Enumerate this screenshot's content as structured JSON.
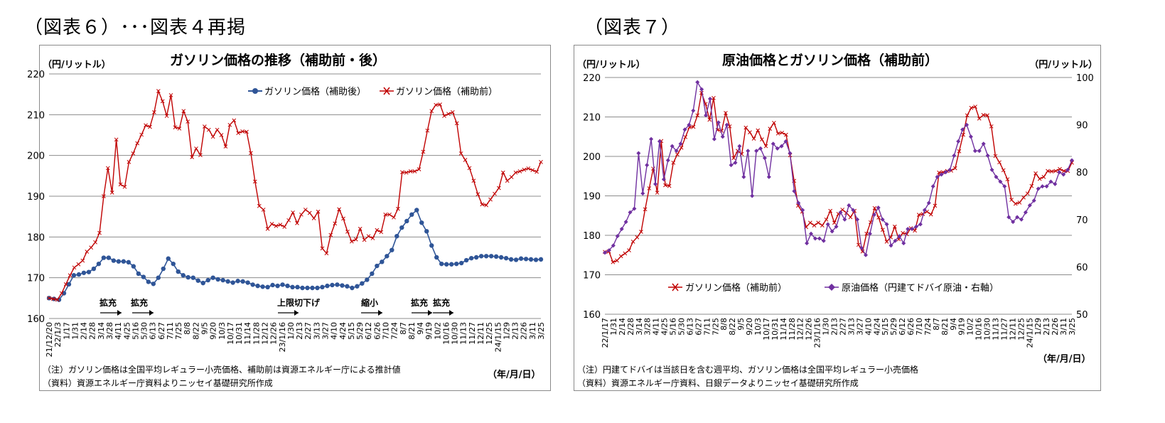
{
  "captions": {
    "left": "（図表６）･･･図表４再掲",
    "right": "（図表７）"
  },
  "chart_data": [
    {
      "type": "line",
      "title": "ガソリン価格の推移（補助前・後）",
      "y_unit": "（円/リットル）",
      "ylim": [
        160,
        220
      ],
      "yticks": [
        160,
        170,
        180,
        190,
        200,
        210,
        220
      ],
      "grid": true,
      "legend_position": "top-right",
      "x_unit": "（年/月/日）",
      "x_tick_labels": [
        "21/12/20",
        "22/1/3",
        "1/17",
        "1/31",
        "2/14",
        "2/28",
        "3/14",
        "3/28",
        "4/11",
        "4/25",
        "5/16",
        "5/30",
        "6/13",
        "6/27",
        "7/11",
        "7/25",
        "8/8",
        "8/22",
        "9/5",
        "9/20",
        "10/3",
        "10/17",
        "10/31",
        "11/14",
        "11/28",
        "12/12",
        "12/26",
        "23/1/16",
        "1/30",
        "2/13",
        "2/27",
        "3/13",
        "3/27",
        "4/10",
        "4/24",
        "5/15",
        "5/29",
        "6/12",
        "6/26",
        "7/10",
        "7/24",
        "8/7",
        "8/21",
        "9/4",
        "9/19",
        "10/2",
        "10/16",
        "10/30",
        "11/13",
        "11/27",
        "12/11",
        "12/25",
        "24/1/15",
        "1/29",
        "2/13",
        "2/26",
        "3/11",
        "3/25"
      ],
      "series": [
        {
          "name": "ガソリン価格（補助後）",
          "color": "#2f5597",
          "marker": "circle",
          "values": [
            165.0,
            164.8,
            164.6,
            166.2,
            168.4,
            170.6,
            170.8,
            171.2,
            171.4,
            172.2,
            173.4,
            174.9,
            174.9,
            174.2,
            174.0,
            174.0,
            173.8,
            172.8,
            171.0,
            170.2,
            169.0,
            168.5,
            170.0,
            172.2,
            174.7,
            173.4,
            171.5,
            170.6,
            170.1,
            170.0,
            169.3,
            168.7,
            169.4,
            170.0,
            169.6,
            169.4,
            169.1,
            168.8,
            169.2,
            169.1,
            168.8,
            168.3,
            168.0,
            167.8,
            167.7,
            168.2,
            168.0,
            168.3,
            168.0,
            167.7,
            167.7,
            167.5,
            167.5,
            167.5,
            167.5,
            167.7,
            168.0,
            168.2,
            168.3,
            168.1,
            167.9,
            167.5,
            167.9,
            168.6,
            169.5,
            171.0,
            172.9,
            173.9,
            175.3,
            176.8,
            180.2,
            182.3,
            183.9,
            185.5,
            186.6,
            183.5,
            181.4,
            177.9,
            175.0,
            173.4,
            173.3,
            173.3,
            173.4,
            173.6,
            174.3,
            174.8,
            175.0,
            175.3,
            175.3,
            175.3,
            175.2,
            175.0,
            174.8,
            174.5,
            174.4,
            174.7,
            174.6,
            174.5,
            174.4,
            174.5
          ]
        },
        {
          "name": "ガソリン価格（補助前）",
          "color": "#c00000",
          "marker": "x",
          "values": [
            165.0,
            164.8,
            164.6,
            166.2,
            168.4,
            170.6,
            172.5,
            173.3,
            174.2,
            176.4,
            177.4,
            178.7,
            181.0,
            190.0,
            196.9,
            190.9,
            203.9,
            192.9,
            192.3,
            198.4,
            200.5,
            203.0,
            205.1,
            207.4,
            207.0,
            210.6,
            215.8,
            213.3,
            209.7,
            214.8,
            206.9,
            206.6,
            210.9,
            208.3,
            199.6,
            201.7,
            200.1,
            207.1,
            206.3,
            204.6,
            206.3,
            205.0,
            202.2,
            207.5,
            208.6,
            205.5,
            205.9,
            205.8,
            200.6,
            193.6,
            187.6,
            186.7,
            182.0,
            183.2,
            182.7,
            183.0,
            182.5,
            184.1,
            186.0,
            183.4,
            185.5,
            186.7,
            185.9,
            184.6,
            186.2,
            177.2,
            176.0,
            180.5,
            183.3,
            186.8,
            184.5,
            181.3,
            178.9,
            179.4,
            182.0,
            179.3,
            180.2,
            179.7,
            181.7,
            181.2,
            185.5,
            185.5,
            184.8,
            186.9,
            195.9,
            195.8,
            196.1,
            196.1,
            196.6,
            200.9,
            206.1,
            210.9,
            212.4,
            212.5,
            209.7,
            210.2,
            210.6,
            207.9,
            200.5,
            198.9,
            196.9,
            193.8,
            190.5,
            188.0,
            187.8,
            189.2,
            190.6,
            192.0,
            195.8,
            193.8,
            194.7,
            195.8,
            196.1,
            196.5,
            196.8,
            196.4,
            196.0,
            198.4
          ]
        }
      ],
      "annotations": [
        "拡充",
        "拡充",
        "上限切下げ",
        "縮小",
        "拡充",
        "拡充"
      ],
      "notes": [
        "（注）ガソリン価格は全国平均レギュラー小売価格、補助前は資源エネルギー庁による推計値",
        "（資料）資源エネルギー庁資料よりニッセイ基礎研究所作成"
      ]
    },
    {
      "type": "line",
      "title": "原油価格とガソリン価格（補助前）",
      "y_unit": "（円/リットル）",
      "y2_unit": "（円/リットル）",
      "ylim": [
        160,
        220
      ],
      "yticks": [
        160,
        170,
        180,
        190,
        200,
        210,
        220
      ],
      "y2lim": [
        50,
        100
      ],
      "y2ticks": [
        50,
        60,
        70,
        80,
        90,
        100
      ],
      "grid": true,
      "legend_position": "bottom",
      "x_unit": "（年/月/日）",
      "x_tick_labels": [
        "22/1/17",
        "1/31",
        "2/14",
        "2/28",
        "3/14",
        "3/28",
        "4/11",
        "4/25",
        "5/16",
        "5/30",
        "6/13",
        "6/27",
        "7/11",
        "7/25",
        "8/8",
        "8/22",
        "9/5",
        "9/20",
        "10/3",
        "10/17",
        "10/31",
        "11/14",
        "11/28",
        "12/12",
        "12/26",
        "23/1/16",
        "1/30",
        "2/13",
        "2/27",
        "3/13",
        "3/27",
        "4/10",
        "4/24",
        "5/15",
        "5/29",
        "6/12",
        "6/26",
        "7/10",
        "7/24",
        "8/7",
        "8/21",
        "9/4",
        "9/19",
        "10/2",
        "10/16",
        "10/30",
        "11/13",
        "11/27",
        "12/11",
        "12/25",
        "24/1/15",
        "1/29",
        "2/13",
        "2/26",
        "3/11",
        "3/25"
      ],
      "series": [
        {
          "name": "ガソリン価格（補助前）",
          "axis": "left",
          "color": "#c00000",
          "marker": "x",
          "values": [
            175.8,
            175.9,
            173.2,
            173.6,
            174.7,
            175.4,
            176.2,
            178.4,
            179.5,
            180.9,
            186.6,
            191.9,
            196.9,
            190.8,
            203.9,
            192.7,
            192.5,
            198.4,
            200.5,
            202.2,
            204.9,
            207.4,
            207.5,
            210.4,
            216.1,
            213.3,
            209.3,
            214.8,
            206.7,
            206.5,
            211.0,
            207.6,
            199.6,
            201.4,
            200.6,
            207.3,
            206.1,
            204.5,
            206.6,
            204.3,
            202.6,
            207.0,
            208.5,
            205.8,
            206.0,
            205.5,
            200.3,
            193.8,
            187.5,
            186.0,
            182.1,
            183.2,
            182.5,
            183.2,
            182.5,
            184.0,
            186.2,
            183.2,
            185.4,
            186.5,
            185.7,
            184.6,
            186.2,
            177.6,
            175.9,
            180.4,
            183.3,
            186.9,
            184.5,
            181.4,
            178.4,
            179.5,
            182.2,
            179.0,
            180.6,
            180.3,
            181.8,
            181.2,
            185.2,
            185.4,
            186.0,
            185.3,
            187.5,
            195.9,
            196.0,
            196.3,
            196.4,
            197.0,
            201.3,
            205.5,
            210.4,
            212.3,
            212.6,
            209.6,
            210.5,
            210.4,
            207.6,
            200.1,
            198.5,
            196.5,
            194.2,
            189.0,
            188.0,
            188.3,
            189.6,
            190.6,
            192.5,
            195.7,
            194.3,
            194.8,
            196.3,
            196.2,
            196.3,
            196.8,
            196.3,
            196.3,
            198.4
          ]
        },
        {
          "name": "原油価格（円建てドバイ原油・右軸）",
          "axis": "right",
          "color": "#7030a0",
          "marker": "diamond",
          "values": [
            63.0,
            63.5,
            64.5,
            66.5,
            68.0,
            69.5,
            71.5,
            72.3,
            84.0,
            75.5,
            81.5,
            87.0,
            77.5,
            86.5,
            78.5,
            82.5,
            85.5,
            84.5,
            86.0,
            89.0,
            90.0,
            93.0,
            99.0,
            97.5,
            92.0,
            95.5,
            87.0,
            90.5,
            87.5,
            90.0,
            81.5,
            82.0,
            85.5,
            79.0,
            84.5,
            75.0,
            84.5,
            85.0,
            83.0,
            79.0,
            86.0,
            85.0,
            85.5,
            86.5,
            84.0,
            76.0,
            73.5,
            72.0,
            65.0,
            67.0,
            66.0,
            66.0,
            65.5,
            69.0,
            67.5,
            68.5,
            71.5,
            70.0,
            73.0,
            72.0,
            70.0,
            64.0,
            62.5,
            67.0,
            71.0,
            72.5,
            70.0,
            69.0,
            64.5,
            65.5,
            66.5,
            65.0,
            68.0,
            68.0,
            68.5,
            69.0,
            72.0,
            73.5,
            77.0,
            79.0,
            79.5,
            80.0,
            80.5,
            83.5,
            86.5,
            89.0,
            90.0,
            87.5,
            84.5,
            84.5,
            86.0,
            83.5,
            80.5,
            79.0,
            78.0,
            77.0,
            70.5,
            69.5,
            70.5,
            70.0,
            71.5,
            73.0,
            74.0,
            76.5,
            77.0,
            77.0,
            78.0,
            77.5,
            80.0,
            79.5,
            80.5,
            82.5
          ]
        }
      ],
      "notes": [
        "（注）円建てドバイは当該日を含む週平均、ガソリン価格は全国平均レギュラー小売価格",
        "（資料）資源エネルギー庁資料、日銀データよりニッセイ基礎研究所作成"
      ]
    }
  ]
}
